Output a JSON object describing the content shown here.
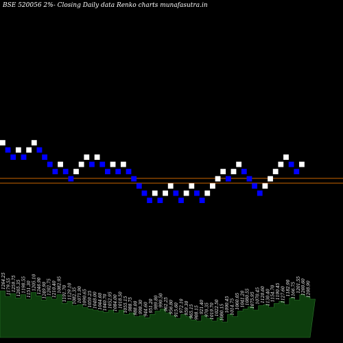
{
  "title": "BSE 520056  2%-  Closing Daily data  Renko  charts munafasutra.in",
  "colors": {
    "background": "#000000",
    "up_brick": "#ffffff",
    "down_brick": "#0000ff",
    "ref_line": "#cc6600",
    "volume_fill": "#0d3d0d",
    "volume_stroke": "#2d7a2d"
  },
  "chart_data": {
    "type": "renko",
    "title": "BSE 520056  2%-  Closing Daily data  Renko  charts munafasutra.in",
    "brick_size_percent": 2,
    "reference_lines": [
      260,
      267
    ],
    "bricks": [
      {
        "dir": "up",
        "level": 22
      },
      {
        "dir": "down",
        "level": 21
      },
      {
        "dir": "down",
        "level": 20
      },
      {
        "dir": "up",
        "level": 21
      },
      {
        "dir": "down",
        "level": 20
      },
      {
        "dir": "up",
        "level": 21
      },
      {
        "dir": "up",
        "level": 22
      },
      {
        "dir": "down",
        "level": 21
      },
      {
        "dir": "down",
        "level": 20
      },
      {
        "dir": "down",
        "level": 19
      },
      {
        "dir": "down",
        "level": 18
      },
      {
        "dir": "up",
        "level": 19
      },
      {
        "dir": "down",
        "level": 18
      },
      {
        "dir": "down",
        "level": 17
      },
      {
        "dir": "up",
        "level": 18
      },
      {
        "dir": "up",
        "level": 19
      },
      {
        "dir": "up",
        "level": 20
      },
      {
        "dir": "down",
        "level": 19
      },
      {
        "dir": "up",
        "level": 20
      },
      {
        "dir": "down",
        "level": 19
      },
      {
        "dir": "down",
        "level": 18
      },
      {
        "dir": "up",
        "level": 19
      },
      {
        "dir": "down",
        "level": 18
      },
      {
        "dir": "up",
        "level": 19
      },
      {
        "dir": "down",
        "level": 18
      },
      {
        "dir": "down",
        "level": 17
      },
      {
        "dir": "down",
        "level": 16
      },
      {
        "dir": "down",
        "level": 15
      },
      {
        "dir": "down",
        "level": 14
      },
      {
        "dir": "up",
        "level": 15
      },
      {
        "dir": "down",
        "level": 14
      },
      {
        "dir": "up",
        "level": 15
      },
      {
        "dir": "up",
        "level": 16
      },
      {
        "dir": "down",
        "level": 15
      },
      {
        "dir": "down",
        "level": 14
      },
      {
        "dir": "up",
        "level": 15
      },
      {
        "dir": "up",
        "level": 16
      },
      {
        "dir": "down",
        "level": 15
      },
      {
        "dir": "down",
        "level": 14
      },
      {
        "dir": "up",
        "level": 15
      },
      {
        "dir": "up",
        "level": 16
      },
      {
        "dir": "up",
        "level": 17
      },
      {
        "dir": "up",
        "level": 18
      },
      {
        "dir": "down",
        "level": 17
      },
      {
        "dir": "up",
        "level": 18
      },
      {
        "dir": "up",
        "level": 19
      },
      {
        "dir": "down",
        "level": 18
      },
      {
        "dir": "down",
        "level": 17
      },
      {
        "dir": "down",
        "level": 16
      },
      {
        "dir": "down",
        "level": 15
      },
      {
        "dir": "up",
        "level": 16
      },
      {
        "dir": "up",
        "level": 17
      },
      {
        "dir": "up",
        "level": 18
      },
      {
        "dir": "up",
        "level": 19
      },
      {
        "dir": "up",
        "level": 20
      },
      {
        "dir": "down",
        "level": 19
      },
      {
        "dir": "down",
        "level": 18
      },
      {
        "dir": "up",
        "level": 19
      }
    ],
    "volume_labels": [
      "1264.25",
      "1179.55",
      "1259.75",
      "1265.35",
      "1198.55",
      "1151.30",
      "1205.10",
      "1246.90",
      "1249.90",
      "1202.75",
      "1210.40",
      "1082.95",
      "1191.70",
      "1129.10",
      "1082.35",
      "1071.90",
      "1090.65",
      "1059.25",
      "1048.00",
      "1044.60",
      "1040.70",
      "1052.95",
      "1084.00",
      "1018.50",
      "1055.15",
      "988.75",
      "988.00",
      "998.30",
      "944.60",
      "951.20",
      "989.80",
      "990.50",
      "962.25",
      "956.80",
      "915.60",
      "972.10",
      "959.30",
      "965.15",
      "908.15",
      "921.40",
      "970.35",
      "1019.70",
      "1022.50",
      "1080.15",
      "1090.45",
      "1014.75",
      "1060.05",
      "1041.20",
      "1080.55",
      "1075.95",
      "1070.45",
      "1120.60",
      "1130.40",
      "1154.70",
      "1190.45",
      "1127.60",
      "1182.90",
      "1166.75",
      "1201.55",
      "1260.60",
      "1208.90"
    ],
    "volume_heights": [
      0.85,
      0.75,
      0.8,
      0.72,
      0.78,
      0.7,
      0.82,
      0.76,
      0.68,
      0.74,
      0.7,
      0.78,
      0.62,
      0.66,
      0.58,
      0.6,
      0.55,
      0.52,
      0.5,
      0.48,
      0.46,
      0.5,
      0.45,
      0.5,
      0.42,
      0.45,
      0.38,
      0.4,
      0.36,
      0.42,
      0.48,
      0.52,
      0.45,
      0.4,
      0.35,
      0.42,
      0.38,
      0.32,
      0.3,
      0.4,
      0.35,
      0.3,
      0.36,
      0.28,
      0.42,
      0.38,
      0.48,
      0.52,
      0.56,
      0.5,
      0.58,
      0.6,
      0.55,
      0.62,
      0.66,
      0.6,
      0.72,
      0.68,
      0.78,
      0.74,
      0.7
    ]
  }
}
